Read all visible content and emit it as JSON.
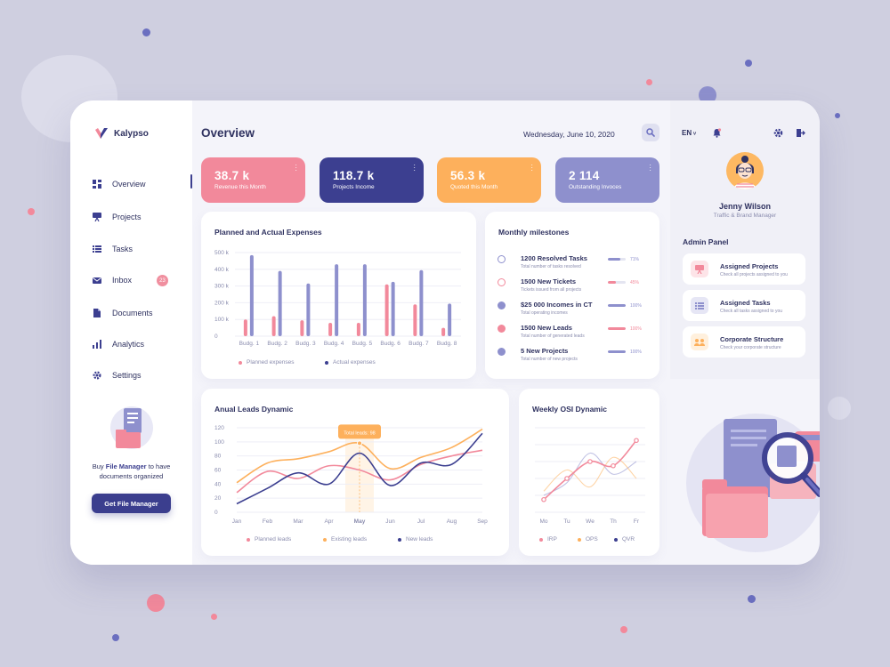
{
  "brand": {
    "name": "Kalypso"
  },
  "nav": {
    "items": [
      {
        "label": "Overview",
        "icon": "grid-icon",
        "active": true
      },
      {
        "label": "Projects",
        "icon": "presentation-icon"
      },
      {
        "label": "Tasks",
        "icon": "list-icon"
      },
      {
        "label": "Inbox",
        "icon": "envelope-icon",
        "badge": "23"
      },
      {
        "label": "Documents",
        "icon": "document-icon"
      },
      {
        "label": "Analytics",
        "icon": "bar-chart-icon"
      },
      {
        "label": "Settings",
        "icon": "gear-icon"
      }
    ]
  },
  "file_manager": {
    "text_prefix": "Buy",
    "text_bold": "File Manager",
    "text_suffix": "to have documents organized",
    "button": "Get File Manager"
  },
  "header": {
    "title": "Overview",
    "date": "Wednesday, June 10, 2020"
  },
  "stats": [
    {
      "value": "38.7 k",
      "label": "Revenue this Month",
      "color": "#f2899b"
    },
    {
      "value": "118.7 k",
      "label": "Projects Income",
      "color": "#3c3f90"
    },
    {
      "value": "56.3 k",
      "label": "Quoted this Month",
      "color": "#fdb05c"
    },
    {
      "value": "2 114",
      "label": "Outstanding Invoces",
      "color": "#8e90cd"
    }
  ],
  "colors": {
    "pink": "#f2899b",
    "navy": "#3c3f90",
    "orange": "#fdb05c",
    "lavender": "#8e90cd"
  },
  "expenses": {
    "title": "Planned and Actual Expenses",
    "legend": [
      "Planned expenses",
      "Actual expenses"
    ]
  },
  "milestones": {
    "title": "Monthly milestones",
    "items": [
      {
        "title": "1200 Resolved Tasks",
        "sub": "Total number of tasks resolved",
        "pct": "71%",
        "fill": 0.71,
        "color": "#8e90cd",
        "icon": "ring"
      },
      {
        "title": "1500 New Tickets",
        "sub": "Tickets issued from all projects",
        "pct": "45%",
        "fill": 0.45,
        "color": "#f2899b",
        "icon": "ring"
      },
      {
        "title": "$25 000 Incomes in CT",
        "sub": "Total operating incomes",
        "pct": "100%",
        "fill": 1.0,
        "color": "#8e90cd",
        "icon": "dot"
      },
      {
        "title": "1500 New Leads",
        "sub": "Total number of generated leads",
        "pct": "100%",
        "fill": 1.0,
        "color": "#f2899b",
        "icon": "dot"
      },
      {
        "title": "5 New Projects",
        "sub": "Total number of new projects",
        "pct": "100%",
        "fill": 1.0,
        "color": "#8e90cd",
        "icon": "dot"
      }
    ]
  },
  "leads": {
    "title": "Anual Leads Dynamic",
    "tooltip": "Total leads: 98",
    "legend": [
      "Planned leads",
      "Existing leads",
      "New leads"
    ]
  },
  "osi": {
    "title": "Weekly OSI Dynamic",
    "legend": [
      "IRP",
      "OPS",
      "QVR"
    ]
  },
  "right_panel": {
    "lang": "EN",
    "user_name": "Jenny Wilson",
    "user_role": "Traffic & Brand Manager",
    "admin_title": "Admin Panel",
    "admin_items": [
      {
        "title": "Assigned Projects",
        "sub": "Check all projects assigned to you",
        "icon": "presentation-icon",
        "bg": "#fde4e8",
        "fg": "#f2899b"
      },
      {
        "title": "Assigned Tasks",
        "sub": "Check all tasks assigned to you",
        "icon": "list-icon",
        "bg": "#e6e6f5",
        "fg": "#8e90cd"
      },
      {
        "title": "Corporate Structure",
        "sub": "Check your corporate structure",
        "icon": "people-icon",
        "bg": "#fff0dd",
        "fg": "#fdb05c"
      }
    ]
  },
  "chart_data": [
    {
      "type": "bar",
      "title": "Planned and Actual Expenses",
      "categories": [
        "Budg. 1",
        "Budg. 2",
        "Budg. 3",
        "Budg. 4",
        "Budg. 5",
        "Budg. 6",
        "Budg. 7",
        "Budg. 8"
      ],
      "y_ticks": [
        "0",
        "100 k",
        "200 k",
        "300 k",
        "400 k",
        "500 k"
      ],
      "ylim": [
        0,
        500
      ],
      "grid": true,
      "legend_position": "bottom",
      "series": [
        {
          "name": "Planned expenses",
          "color": "#f2899b",
          "values": [
            100,
            120,
            95,
            80,
            80,
            310,
            190,
            50
          ]
        },
        {
          "name": "Actual expenses",
          "color": "#8e90cd",
          "values": [
            485,
            390,
            315,
            430,
            430,
            325,
            395,
            195
          ]
        }
      ]
    },
    {
      "type": "line",
      "title": "Anual Leads Dynamic",
      "categories": [
        "Jan",
        "Feb",
        "Mar",
        "Apr",
        "May",
        "Jun",
        "Jul",
        "Aug",
        "Sep"
      ],
      "highlight": "May",
      "y_ticks": [
        "0",
        "20",
        "40",
        "60",
        "80",
        "100",
        "120"
      ],
      "ylim": [
        0,
        120
      ],
      "grid": true,
      "legend_position": "bottom",
      "series": [
        {
          "name": "Planned leads",
          "color": "#f2899b",
          "values": [
            28,
            58,
            48,
            66,
            60,
            46,
            68,
            80,
            88
          ]
        },
        {
          "name": "Existing leads",
          "color": "#fdb05c",
          "values": [
            42,
            70,
            76,
            86,
            98,
            62,
            78,
            92,
            118
          ]
        },
        {
          "name": "New leads",
          "color": "#3c3f90",
          "values": [
            12,
            34,
            56,
            40,
            84,
            38,
            70,
            68,
            112
          ]
        }
      ]
    },
    {
      "type": "line",
      "title": "Weekly OSI Dynamic",
      "categories": [
        "Mo",
        "Tu",
        "We",
        "Th",
        "Fr"
      ],
      "grid": true,
      "legend_position": "bottom",
      "series": [
        {
          "name": "IRP",
          "color": "#f2899b",
          "values": [
            15,
            40,
            60,
            55,
            85
          ]
        },
        {
          "name": "OPS",
          "color": "#fdb05c",
          "values": [
            25,
            50,
            30,
            65,
            40
          ]
        },
        {
          "name": "QVR",
          "color": "#8e90cd",
          "values": [
            20,
            35,
            70,
            45,
            60
          ]
        }
      ]
    }
  ]
}
